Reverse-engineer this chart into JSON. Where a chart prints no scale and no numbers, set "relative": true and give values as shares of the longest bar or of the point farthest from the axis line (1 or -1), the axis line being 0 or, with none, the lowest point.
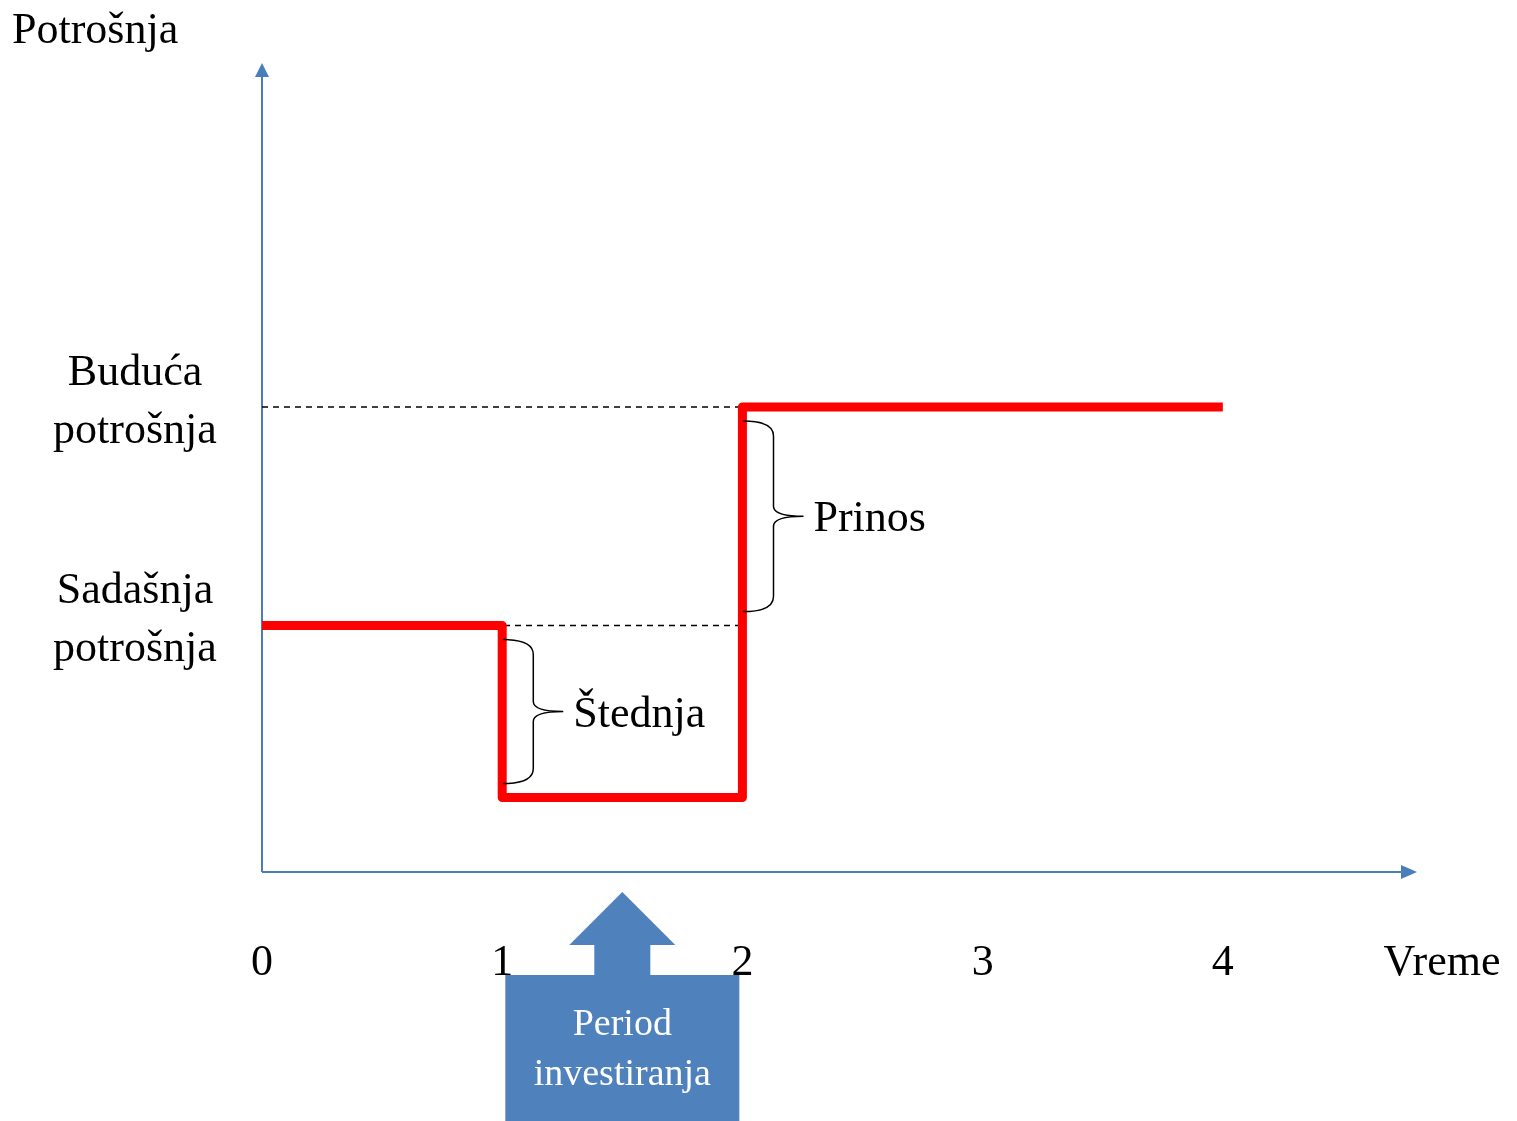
{
  "chart_data": {
    "type": "step",
    "relative": true,
    "xlabel": "Vreme",
    "x": [
      0,
      1,
      2,
      4
    ],
    "series": [
      {
        "color": "#ff0000",
        "values": [
          0.53,
          0.16,
          1,
          1
        ]
      }
    ],
    "xlim": [
      0,
      4.8
    ],
    "xticks": [
      0,
      1,
      2,
      3,
      4
    ],
    "ref_lines": [
      {
        "axis": "y",
        "value": 1,
        "label": "Buduća potrošnja",
        "line_style": "dashed",
        "color": "#000000"
      },
      {
        "axis": "y",
        "value": 0.53,
        "label": "Sadašnja potrošnja",
        "line_style": "dashed",
        "color": "#000000"
      }
    ],
    "annotations": [
      "Potrošnja",
      "Štednja",
      "Prinos",
      "Period investiranja"
    ]
  }
}
